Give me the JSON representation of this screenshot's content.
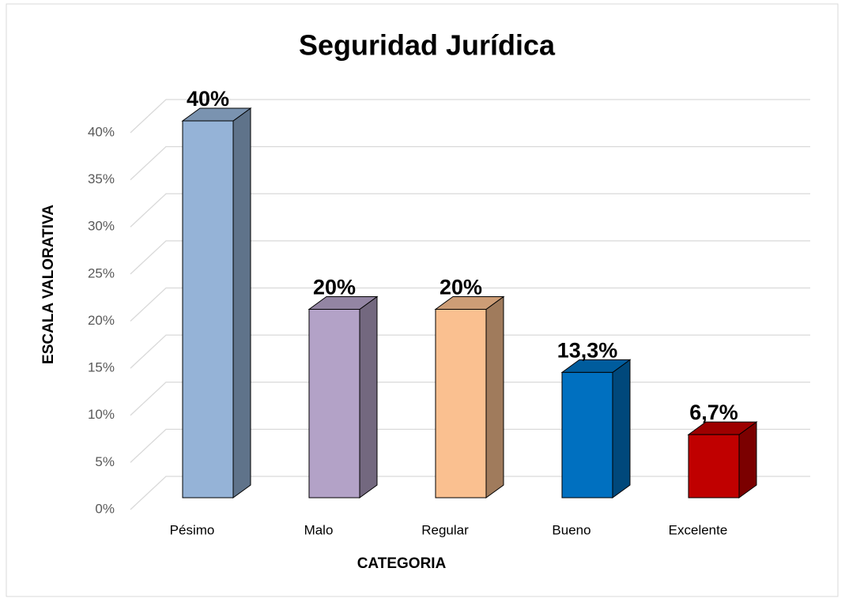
{
  "chart_data": {
    "type": "bar3d",
    "title": "Seguridad Jurídica",
    "x_label": "CATEGORIA",
    "y_label": "ESCALA  VALORATIVA",
    "categories": [
      "Pésimo",
      "Malo",
      "Regular",
      "Bueno",
      "Excelente"
    ],
    "values": [
      40,
      20,
      20,
      13.3,
      6.7
    ],
    "value_labels": [
      "40%",
      "20%",
      "20%",
      "13,3%",
      "6,7%"
    ],
    "colors": [
      "#95b3d7",
      "#b3a2c7",
      "#fac090",
      "#0070c0",
      "#c00000"
    ],
    "ylim": [
      0,
      40
    ],
    "yticks": [
      {
        "value": 0,
        "label": "0%"
      },
      {
        "value": 5,
        "label": "5%"
      },
      {
        "value": 10,
        "label": "10%"
      },
      {
        "value": 15,
        "label": "15%"
      },
      {
        "value": 20,
        "label": "20%"
      },
      {
        "value": 25,
        "label": "25%"
      },
      {
        "value": 30,
        "label": "30%"
      },
      {
        "value": 35,
        "label": "35%"
      },
      {
        "value": 40,
        "label": "40%"
      }
    ],
    "grid": true
  }
}
